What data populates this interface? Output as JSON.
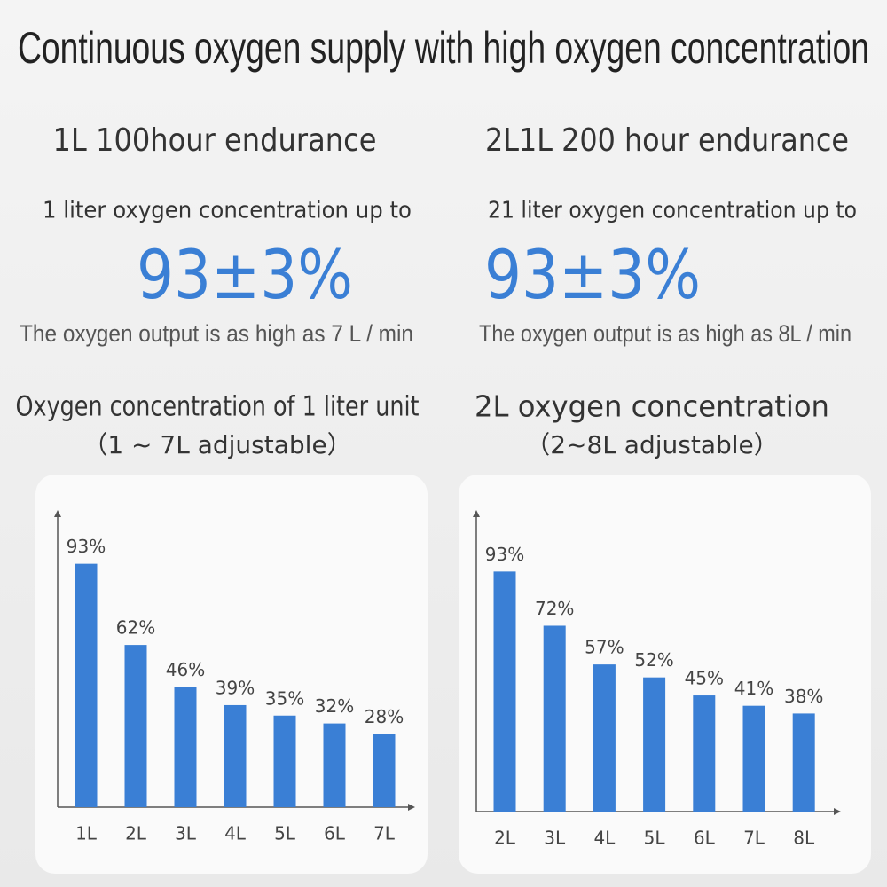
{
  "header": {
    "title": "Continuous oxygen supply with high oxygen concentration"
  },
  "columns": [
    {
      "heading": "1L 100hour endurance",
      "subheading": "1 liter oxygen concentration up to",
      "highlight": "93±3%",
      "note": "The oxygen output is as high as 7 L / min"
    },
    {
      "heading": "2L1L 200 hour endurance",
      "subheading": "21 liter oxygen concentration up to",
      "highlight": "93±3%",
      "note": "The oxygen output is as high as 8L / min"
    }
  ],
  "chart_data": [
    {
      "type": "bar",
      "title": "Oxygen concentration of 1 liter unit",
      "subtitle": "（1 ~ 7L adjustable）",
      "categories": [
        "1L",
        "2L",
        "3L",
        "4L",
        "5L",
        "6L",
        "7L"
      ],
      "values": [
        93,
        62,
        46,
        39,
        35,
        32,
        28
      ],
      "value_labels": [
        "93%",
        "62%",
        "46%",
        "39%",
        "35%",
        "32%",
        "28%"
      ],
      "color": "#3a7fd5",
      "ylim": [
        0,
        100
      ]
    },
    {
      "type": "bar",
      "title": "2L oxygen concentration",
      "subtitle": "（2~8L adjustable）",
      "categories": [
        "2L",
        "3L",
        "4L",
        "5L",
        "6L",
        "7L",
        "8L"
      ],
      "values": [
        93,
        72,
        57,
        52,
        45,
        41,
        38
      ],
      "value_labels": [
        "93%",
        "72%",
        "57%",
        "52%",
        "45%",
        "41%",
        "38%"
      ],
      "color": "#3a7fd5",
      "ylim": [
        0,
        100
      ]
    }
  ]
}
